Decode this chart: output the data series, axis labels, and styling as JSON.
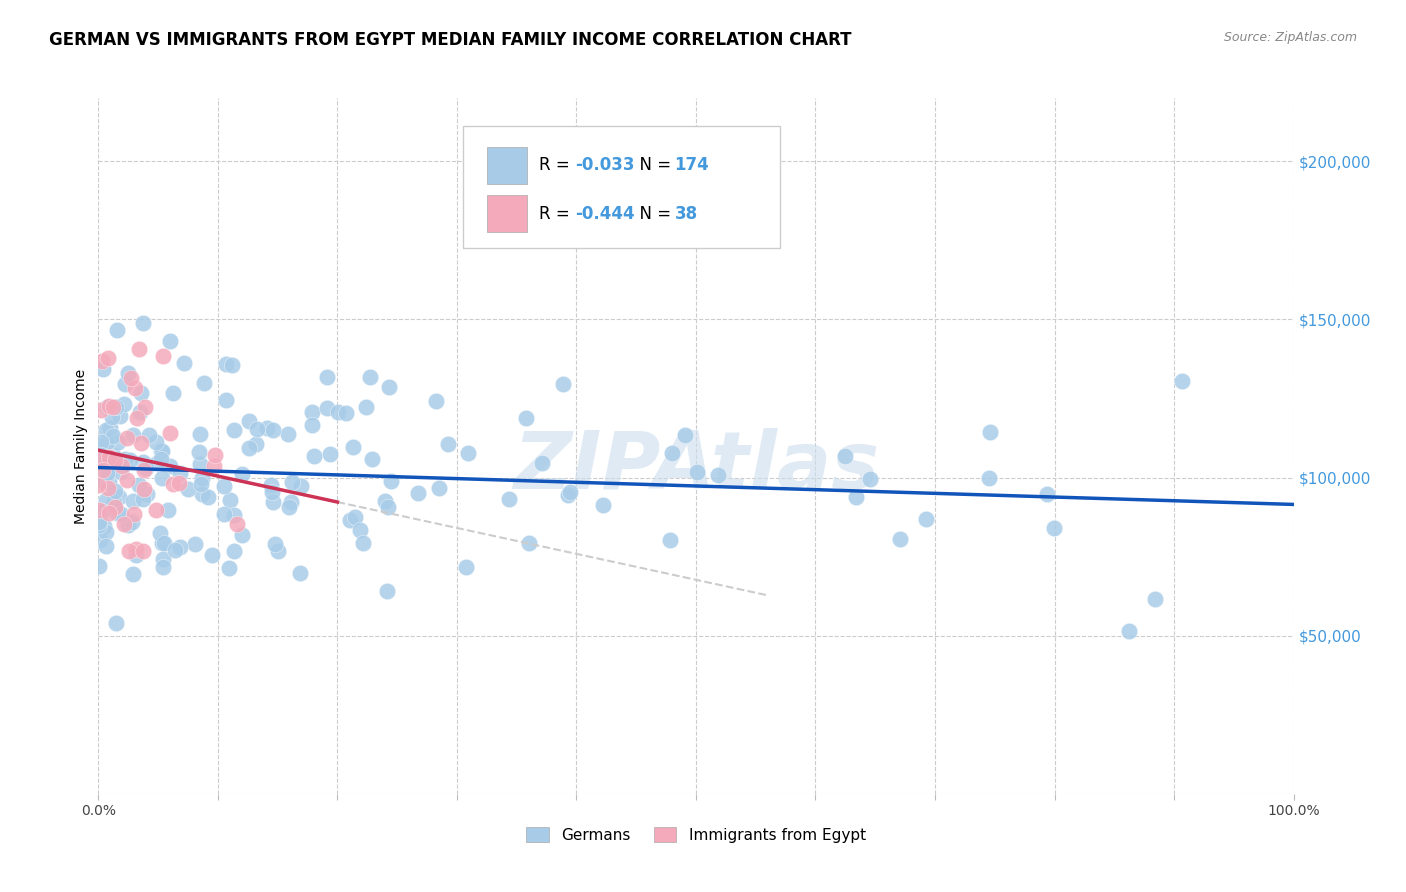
{
  "title": "GERMAN VS IMMIGRANTS FROM EGYPT MEDIAN FAMILY INCOME CORRELATION CHART",
  "source": "Source: ZipAtlas.com",
  "ylabel": "Median Family Income",
  "yticks": [
    0,
    50000,
    100000,
    150000,
    200000
  ],
  "ytick_labels": [
    "",
    "$50,000",
    "$100,000",
    "$150,000",
    "$200,000"
  ],
  "ytick_color": "#4499dd",
  "xlim": [
    0.0,
    1.0
  ],
  "ylim": [
    0,
    220000
  ],
  "blue_R": "-0.033",
  "blue_N": "174",
  "pink_R": "-0.444",
  "pink_N": "38",
  "blue_color": "#a8cce8",
  "pink_color": "#f4aabb",
  "blue_line_color": "#1155bb",
  "pink_line_color": "#cc3355",
  "pink_dashed_color": "#cccccc",
  "watermark_color": "#ccdded",
  "background_color": "#ffffff",
  "legend_blue_label": "Germans",
  "legend_pink_label": "Immigrants from Egypt",
  "title_fontsize": 12,
  "blue_N_int": 174,
  "pink_N_int": 38,
  "blue_scatter_seed": 42,
  "pink_scatter_seed": 7
}
